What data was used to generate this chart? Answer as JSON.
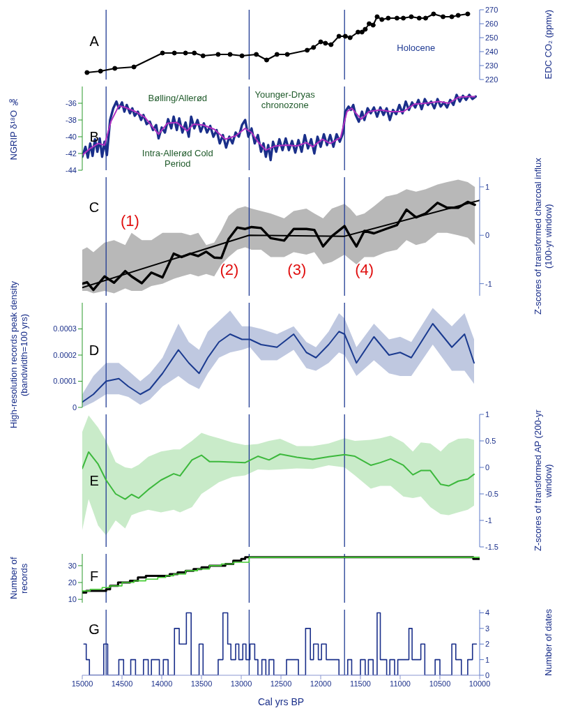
{
  "chart_data": [
    {
      "type": "line",
      "y2label": "EDC CO₂ (ppmv)",
      "xlim": [
        15000,
        10000
      ],
      "y2lim": [
        220,
        270
      ],
      "y2ticks": [
        220,
        230,
        240,
        250,
        260,
        270
      ],
      "tick_labels": "y",
      "marker": "circle",
      "annotations": [
        "A",
        "Holocene"
      ],
      "ref_lines": [
        {
          "axis": "x",
          "value": 14700,
          "color": "#1f3a93"
        },
        {
          "axis": "x",
          "value": 12900,
          "color": "#1f3a93"
        },
        {
          "axis": "x",
          "value": 11700,
          "color": "#1f3a93"
        }
      ],
      "series": [
        {
          "color": "#000000",
          "axis": "y2",
          "x": [
            14940,
            14770,
            14590,
            14350,
            13990,
            13840,
            13700,
            13590,
            13480,
            13290,
            13140,
            12990,
            12810,
            12680,
            12550,
            12420,
            12170,
            12090,
            12000,
            11940,
            11870,
            11770,
            11690,
            11630,
            11530,
            11480,
            11440,
            11390,
            11340,
            11290,
            11230,
            11150,
            11040,
            10960,
            10860,
            10760,
            10680,
            10580,
            10460,
            10350,
            10270,
            10150
          ],
          "values": [
            225,
            226,
            228,
            229,
            239,
            239,
            239,
            239,
            237,
            238,
            238,
            237,
            238,
            234,
            238,
            238,
            241,
            243,
            247,
            246,
            245,
            251,
            251,
            250,
            254,
            254,
            256,
            260,
            259,
            265,
            263,
            264,
            264,
            264,
            265,
            264,
            264,
            267,
            265,
            265,
            266,
            267
          ]
        }
      ]
    },
    {
      "type": "line",
      "ylabel": "NGRIP δ¹⁸O ‰",
      "xlim": [
        15000,
        10000
      ],
      "ylim": [
        -44,
        -34
      ],
      "yticks": [
        -44,
        -42,
        -40,
        -38,
        -36
      ],
      "tick_labels": "y",
      "annotations": [
        "B",
        "Bølling/Allerød",
        "Younger-Dryas chronozone",
        "Intra-Allerød Cold Period"
      ],
      "ref_lines": [
        {
          "axis": "x",
          "value": 14700,
          "color": "#1f3a93"
        },
        {
          "axis": "x",
          "value": 12900,
          "color": "#1f3a93"
        },
        {
          "axis": "x",
          "value": 11700,
          "color": "#1f3a93"
        }
      ],
      "series": [
        {
          "color": "#1a2f8a",
          "x": [
            15000,
            14960,
            14930,
            14900,
            14870,
            14840,
            14810,
            14780,
            14750,
            14720,
            14690,
            14650,
            14610,
            14570,
            14540,
            14500,
            14470,
            14440,
            14400,
            14370,
            14340,
            14300,
            14260,
            14230,
            14190,
            14150,
            14110,
            14070,
            14040,
            14000,
            13960,
            13920,
            13880,
            13850,
            13810,
            13780,
            13740,
            13700,
            13660,
            13630,
            13590,
            13550,
            13510,
            13470,
            13430,
            13390,
            13350,
            13310,
            13270,
            13230,
            13190,
            13150,
            13110,
            13070,
            13030,
            12990,
            12950,
            12910,
            12870,
            12830,
            12790,
            12750,
            12720,
            12690,
            12660,
            12630,
            12600,
            12560,
            12520,
            12480,
            12440,
            12400,
            12360,
            12320,
            12280,
            12240,
            12200,
            12160,
            12120,
            12080,
            12040,
            12000,
            11960,
            11920,
            11880,
            11840,
            11800,
            11760,
            11720,
            11690,
            11650,
            11620,
            11590,
            11560,
            11520,
            11480,
            11450,
            11410,
            11370,
            11330,
            11290,
            11250,
            11210,
            11170,
            11130,
            11090,
            11050,
            11010,
            10970,
            10930,
            10890,
            10850,
            10810,
            10770,
            10730,
            10690,
            10650,
            10610,
            10570,
            10530,
            10490,
            10450,
            10410,
            10370,
            10330,
            10290,
            10250,
            10210,
            10170,
            10130,
            10090,
            10050
          ],
          "values": [
            -42.4,
            -41.2,
            -42.5,
            -40.8,
            -42.3,
            -40.3,
            -41.8,
            -40.2,
            -42.4,
            -40.6,
            -42.2,
            -38.0,
            -36.6,
            -35.8,
            -36.6,
            -35.9,
            -37.0,
            -36.2,
            -37.2,
            -36.6,
            -37.5,
            -37.0,
            -38.0,
            -37.4,
            -38.5,
            -38.2,
            -39.2,
            -38.6,
            -40.2,
            -38.9,
            -39.5,
            -37.9,
            -39.0,
            -37.6,
            -39.2,
            -37.8,
            -39.5,
            -38.3,
            -40.0,
            -37.6,
            -39.0,
            -38.0,
            -39.4,
            -38.4,
            -39.5,
            -38.7,
            -40.0,
            -39.2,
            -40.8,
            -39.8,
            -41.3,
            -40.0,
            -40.8,
            -39.5,
            -40.0,
            -38.6,
            -38.0,
            -40.0,
            -39.0,
            -40.8,
            -39.8,
            -41.8,
            -40.8,
            -42.4,
            -41.0,
            -42.8,
            -40.6,
            -41.8,
            -40.3,
            -41.6,
            -40.2,
            -41.6,
            -40.5,
            -41.9,
            -40.4,
            -41.8,
            -39.8,
            -41.4,
            -40.3,
            -42.0,
            -40.0,
            -41.2,
            -39.7,
            -41.0,
            -39.8,
            -41.2,
            -39.7,
            -40.6,
            -39.6,
            -37.0,
            -36.4,
            -36.8,
            -36.2,
            -37.4,
            -38.2,
            -37.0,
            -38.0,
            -36.6,
            -37.2,
            -36.5,
            -37.6,
            -36.5,
            -37.4,
            -36.6,
            -38.0,
            -36.8,
            -37.3,
            -36.2,
            -37.2,
            -35.8,
            -36.8,
            -35.9,
            -36.5,
            -35.6,
            -36.7,
            -35.5,
            -36.2,
            -35.8,
            -36.6,
            -35.5,
            -36.4,
            -35.9,
            -36.5,
            -35.6,
            -36.2,
            -35.0,
            -35.8,
            -35.1,
            -35.6,
            -35.0,
            -35.5,
            -35.2
          ]
        },
        {
          "color": "#b030c0",
          "x": [
            15000,
            14900,
            14800,
            14720,
            14640,
            14540,
            14460,
            14330,
            14210,
            14110,
            14040,
            13930,
            13810,
            13680,
            13600,
            13480,
            13340,
            13200,
            13070,
            12950,
            12870,
            12790,
            12690,
            12570,
            12420,
            12300,
            12180,
            12100,
            11980,
            11880,
            11750,
            11670,
            11610,
            11490,
            11390,
            11250,
            11120,
            10960,
            10820,
            10680,
            10510,
            10390,
            10270,
            10150,
            10060
          ],
          "values": [
            -42.2,
            -41.4,
            -40.8,
            -41.0,
            -38.2,
            -36.3,
            -36.5,
            -37.0,
            -37.7,
            -38.9,
            -39.7,
            -38.4,
            -38.3,
            -39.3,
            -38.5,
            -38.6,
            -39.1,
            -40.3,
            -39.9,
            -39.0,
            -39.5,
            -40.6,
            -41.6,
            -41.1,
            -41.0,
            -41.1,
            -40.7,
            -41.2,
            -40.3,
            -40.8,
            -40.1,
            -37.0,
            -36.6,
            -37.9,
            -37.0,
            -36.8,
            -37.0,
            -37.0,
            -36.1,
            -36.0,
            -35.8,
            -36.0,
            -35.3,
            -35.2,
            -35.2
          ]
        }
      ]
    },
    {
      "type": "line",
      "y2label": "Z-scores of transformed charcoal influx (100-yr window)",
      "xlim": [
        15000,
        10000
      ],
      "y2lim": [
        -1.25,
        1.2
      ],
      "y2ticks": [
        -1,
        0,
        1
      ],
      "tick_labels": "y",
      "annotations": [
        "C",
        "(1)",
        "(2)",
        "(3)",
        "(4)"
      ],
      "ref_lines": [
        {
          "axis": "x",
          "value": 14700,
          "color": "#1f3a93"
        },
        {
          "axis": "x",
          "value": 12900,
          "color": "#1f3a93"
        },
        {
          "axis": "x",
          "value": 11700,
          "color": "#1f3a93"
        }
      ],
      "series": [
        {
          "color": "#000000",
          "axis": "y2",
          "x": [
            15000,
            14940,
            14860,
            14720,
            14600,
            14460,
            14380,
            14250,
            14130,
            13990,
            13850,
            13750,
            13640,
            13540,
            13440,
            13340,
            13250,
            13160,
            13050,
            12950,
            12870,
            12750,
            12630,
            12460,
            12340,
            12180,
            12080,
            11970,
            11860,
            11700,
            11630,
            11550,
            11450,
            11330,
            11180,
            11040,
            10920,
            10800,
            10680,
            10530,
            10410,
            10270,
            10150,
            10060
          ],
          "values": [
            -1.0,
            -0.97,
            -1.13,
            -0.85,
            -0.98,
            -0.74,
            -0.85,
            -0.99,
            -0.77,
            -0.87,
            -0.38,
            -0.45,
            -0.38,
            -0.43,
            -0.34,
            -0.46,
            -0.47,
            -0.08,
            0.16,
            0.13,
            0.17,
            0.15,
            -0.06,
            -0.11,
            0.13,
            0.13,
            0.11,
            -0.23,
            -0.02,
            0.19,
            -0.02,
            -0.23,
            0.09,
            0.04,
            0.13,
            0.21,
            0.53,
            0.37,
            0.45,
            0.67,
            0.57,
            0.57,
            0.69,
            0.63
          ],
          "upper": [
            -0.3,
            -0.25,
            -0.35,
            -0.15,
            -0.1,
            -0.2,
            0.05,
            -0.1,
            -0.1,
            0.05,
            0.05,
            0.05,
            0.0,
            0.05,
            -0.2,
            -0.15,
            0.1,
            0.4,
            0.55,
            0.6,
            0.55,
            0.5,
            0.45,
            0.35,
            0.5,
            0.55,
            0.45,
            0.35,
            0.55,
            0.65,
            0.55,
            0.4,
            0.45,
            0.6,
            0.8,
            0.85,
            0.95,
            0.9,
            0.95,
            1.05,
            1.1,
            1.15,
            1.1,
            1.0
          ],
          "lower": [
            -1.15,
            -1.15,
            -1.2,
            -1.15,
            -1.2,
            -1.1,
            -1.15,
            -1.15,
            -1.05,
            -1.0,
            -0.9,
            -0.85,
            -0.8,
            -0.85,
            -0.8,
            -0.85,
            -0.6,
            -0.45,
            -0.3,
            -0.25,
            -0.3,
            -0.3,
            -0.45,
            -0.45,
            -0.35,
            -0.4,
            -0.35,
            -0.6,
            -0.55,
            -0.4,
            -0.5,
            -0.6,
            -0.45,
            -0.45,
            -0.35,
            -0.3,
            -0.1,
            -0.2,
            -0.15,
            0.05,
            0.05,
            0.0,
            -0.05,
            -0.2
          ]
        },
        {
          "color": "#000000",
          "axis": "y2",
          "x": [
            15000,
            12900,
            11700,
            10000
          ],
          "values": [
            -1.08,
            0.0,
            -0.02,
            0.72
          ]
        }
      ]
    },
    {
      "type": "line",
      "ylabel": "High-resolution records peak density (bandwidth=100 yrs)",
      "xlim": [
        15000,
        10000
      ],
      "ylim": [
        0,
        0.0004
      ],
      "yticks": [
        0,
        0.0001,
        0.0002,
        0.0003
      ],
      "tick_labels": "y",
      "annotations": [
        "D"
      ],
      "ref_lines": [
        {
          "axis": "x",
          "value": 14700,
          "color": "#1f3a93"
        },
        {
          "axis": "x",
          "value": 12900,
          "color": "#1f3a93"
        },
        {
          "axis": "x",
          "value": 11700,
          "color": "#1f3a93"
        }
      ],
      "series": [
        {
          "color": "#1a3a8f",
          "x": [
            15000,
            14860,
            14700,
            14540,
            14420,
            14270,
            14150,
            13990,
            13790,
            13660,
            13530,
            13420,
            13280,
            13140,
            12990,
            12890,
            12750,
            12550,
            12340,
            12180,
            12060,
            11900,
            11770,
            11700,
            11550,
            11330,
            11140,
            11000,
            10860,
            10590,
            10350,
            10190,
            10070
          ],
          "values": [
            2e-05,
            5e-05,
            0.0001,
            0.00011,
            8e-05,
            5e-05,
            7e-05,
            0.00013,
            0.00022,
            0.00017,
            0.00013,
            0.00019,
            0.00025,
            0.00028,
            0.00026,
            0.00026,
            0.00024,
            0.00023,
            0.00028,
            0.00021,
            0.00019,
            0.00024,
            0.00029,
            0.00028,
            0.00017,
            0.00027,
            0.0002,
            0.00021,
            0.00019,
            0.00032,
            0.00023,
            0.00028,
            0.00017
          ],
          "upper": [
            5e-05,
            0.00012,
            0.00017,
            0.00017,
            0.00014,
            0.0001,
            0.00013,
            0.00019,
            0.00032,
            0.00025,
            0.00022,
            0.00029,
            0.00033,
            0.00037,
            0.00031,
            0.00031,
            0.0003,
            0.00028,
            0.00031,
            0.00025,
            0.00023,
            0.00029,
            0.00036,
            0.00034,
            0.00023,
            0.00032,
            0.00026,
            0.00027,
            0.00025,
            0.00038,
            0.00031,
            0.00036,
            0.00026
          ],
          "lower": [
            0.0,
            2e-05,
            5e-05,
            5e-05,
            4e-05,
            1e-05,
            3e-05,
            8e-05,
            0.00012,
            9e-05,
            7e-05,
            0.00013,
            0.00019,
            0.00021,
            0.00022,
            0.00023,
            0.00018,
            0.00018,
            0.00022,
            0.00015,
            0.00014,
            0.00017,
            0.00021,
            0.0002,
            0.00012,
            0.00018,
            0.00013,
            0.00012,
            0.00012,
            0.00024,
            0.00014,
            0.00014,
            9e-05
          ]
        }
      ]
    },
    {
      "type": "line",
      "y2label": "Z-scores of transformed AP (200-yr window)",
      "xlim": [
        15000,
        10000
      ],
      "y2lim": [
        -1.5,
        1
      ],
      "y2ticks": [
        -1.5,
        -1,
        -0.5,
        0,
        0.5,
        1
      ],
      "tick_labels": "y",
      "annotations": [
        "E"
      ],
      "ref_lines": [
        {
          "axis": "x",
          "value": 14700,
          "color": "#1f3a93"
        },
        {
          "axis": "x",
          "value": 12900,
          "color": "#1f3a93"
        },
        {
          "axis": "x",
          "value": 11700,
          "color": "#1f3a93"
        }
      ],
      "series": [
        {
          "color": "#3cb83c",
          "axis": "y2",
          "x": [
            15000,
            14920,
            14800,
            14700,
            14580,
            14460,
            14380,
            14290,
            14170,
            14010,
            13850,
            13770,
            13620,
            13500,
            13400,
            13280,
            13110,
            12950,
            12790,
            12650,
            12510,
            12300,
            12100,
            11900,
            11700,
            11570,
            11370,
            11250,
            11120,
            10960,
            10840,
            10740,
            10620,
            10490,
            10390,
            10270,
            10150,
            10070
          ],
          "values": [
            -0.02,
            0.29,
            0.06,
            -0.24,
            -0.5,
            -0.6,
            -0.51,
            -0.58,
            -0.42,
            -0.24,
            -0.12,
            -0.16,
            0.14,
            0.23,
            0.11,
            0.11,
            0.1,
            0.09,
            0.21,
            0.14,
            0.25,
            0.19,
            0.15,
            0.2,
            0.24,
            0.21,
            0.04,
            0.09,
            0.16,
            0.04,
            -0.14,
            -0.06,
            -0.06,
            -0.32,
            -0.35,
            -0.26,
            -0.22,
            -0.13
          ],
          "upper": [
            0.67,
            0.98,
            0.75,
            0.5,
            0.1,
            0.0,
            -0.02,
            0.05,
            0.2,
            0.3,
            0.34,
            0.34,
            0.5,
            0.65,
            0.6,
            0.55,
            0.47,
            0.42,
            0.44,
            0.5,
            0.54,
            0.4,
            0.4,
            0.45,
            0.55,
            0.5,
            0.52,
            0.55,
            0.6,
            0.47,
            0.3,
            0.47,
            0.45,
            0.3,
            0.45,
            0.54,
            0.55,
            0.52
          ],
          "lower": [
            -1.18,
            -0.6,
            -1.1,
            -1.28,
            -1.0,
            -1.15,
            -0.9,
            -0.85,
            -0.8,
            -0.85,
            -0.8,
            -0.85,
            -0.75,
            -0.5,
            -0.4,
            -0.28,
            -0.18,
            -0.15,
            -0.04,
            -0.05,
            -0.04,
            -0.02,
            -0.03,
            0.04,
            0.0,
            -0.15,
            -0.4,
            -0.35,
            -0.35,
            -0.55,
            -0.58,
            -0.55,
            -0.75,
            -0.88,
            -0.9,
            -0.85,
            -0.8,
            -0.72
          ]
        }
      ]
    },
    {
      "type": "step",
      "ylabel": "Number of records",
      "xlim": [
        15000,
        10000
      ],
      "ylim": [
        8,
        37
      ],
      "yticks": [
        10,
        20,
        30
      ],
      "tick_labels": "y",
      "annotations": [
        "F"
      ],
      "ref_lines": [
        {
          "axis": "x",
          "value": 14700,
          "color": "#1f3a93"
        },
        {
          "axis": "x",
          "value": 12900,
          "color": "#1f3a93"
        },
        {
          "axis": "x",
          "value": 11700,
          "color": "#1f3a93"
        }
      ],
      "series": [
        {
          "color": "#000000",
          "x": [
            15000,
            14950,
            14700,
            14650,
            14550,
            14400,
            14300,
            14200,
            13900,
            13800,
            13700,
            13600,
            13500,
            13400,
            13200,
            13100,
            13000,
            12950,
            10080,
            10000
          ],
          "values": [
            14,
            15,
            16,
            18,
            20,
            21,
            23,
            24,
            25,
            26,
            27,
            28,
            29,
            30,
            31,
            33,
            34,
            35,
            34,
            34
          ]
        },
        {
          "color": "#44cc33",
          "x": [
            15000,
            14900,
            14750,
            14650,
            14500,
            14350,
            14200,
            14050,
            13950,
            13850,
            13700,
            13550,
            13400,
            13250,
            13100,
            12900,
            10000
          ],
          "values": [
            15,
            16,
            17,
            18,
            20,
            21,
            22,
            23,
            24,
            25,
            27,
            28,
            30,
            31,
            32,
            35,
            35
          ]
        }
      ]
    },
    {
      "type": "step",
      "y2label": "Number of dates",
      "xlabel": "Cal yrs BP",
      "xlim": [
        15000,
        10000
      ],
      "xticks": [
        15000,
        14500,
        14000,
        13500,
        13000,
        12500,
        12000,
        11500,
        11000,
        10500,
        10000
      ],
      "y2lim": [
        0,
        4.2
      ],
      "y2ticks": [
        0,
        1,
        2,
        3,
        4
      ],
      "annotations": [
        "G"
      ],
      "ref_lines": [
        {
          "axis": "x",
          "value": 14700,
          "color": "#1f3a93"
        },
        {
          "axis": "x",
          "value": 12900,
          "color": "#1f3a93"
        },
        {
          "axis": "x",
          "value": 11700,
          "color": "#1f3a93"
        }
      ],
      "series": [
        {
          "color": "#1a2f8a",
          "axis": "y2",
          "x": [
            14980,
            14950,
            14910,
            14730,
            14680,
            14540,
            14480,
            14390,
            14330,
            14230,
            14170,
            14130,
            14030,
            13980,
            13920,
            13840,
            13780,
            13690,
            13630,
            13530,
            13480,
            13290,
            13230,
            13170,
            13130,
            13070,
            13030,
            12980,
            12940,
            12890,
            12830,
            12790,
            12740,
            12690,
            12650,
            12590,
            12430,
            12280,
            12190,
            12130,
            12090,
            12030,
            11990,
            11930,
            11770,
            11660,
            11610,
            11500,
            11440,
            11400,
            11340,
            11290,
            11250,
            11170,
            11130,
            11070,
            11030,
            10890,
            10850,
            10740,
            10690,
            10560,
            10500,
            10350,
            10300,
            10230,
            10150,
            10090,
            10040
          ],
          "values": [
            2,
            1,
            0,
            2,
            0,
            1,
            0,
            1,
            0,
            1,
            0,
            1,
            0,
            1,
            0,
            3,
            2,
            4,
            0,
            2,
            0,
            1,
            4,
            2,
            1,
            2,
            1,
            2,
            1,
            2,
            1,
            0,
            1,
            0,
            1,
            0,
            1,
            0,
            3,
            1,
            2,
            1,
            2,
            1,
            0,
            1,
            0,
            1,
            0,
            1,
            0,
            4,
            1,
            0,
            1,
            0,
            1,
            3,
            1,
            2,
            0,
            1,
            0,
            2,
            1,
            0,
            1,
            2,
            2
          ]
        }
      ]
    }
  ]
}
